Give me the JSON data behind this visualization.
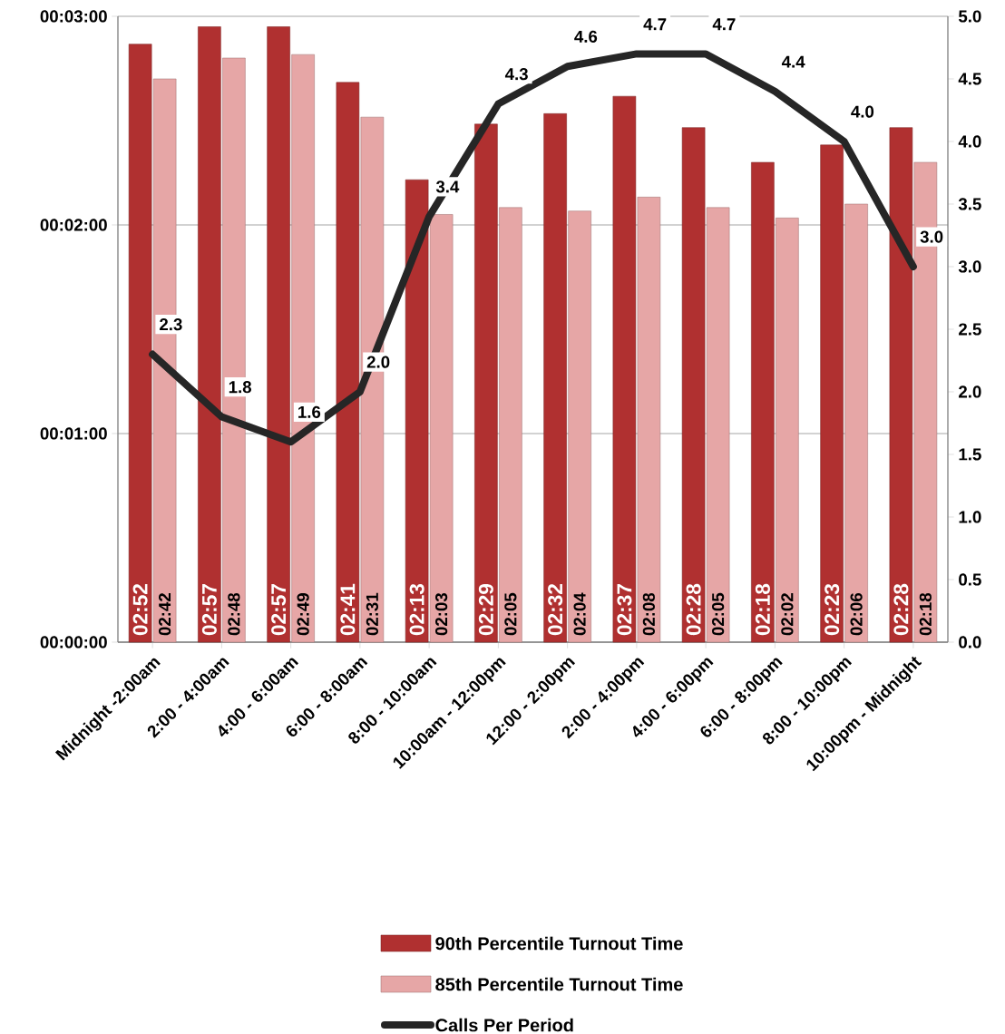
{
  "chart_data": {
    "type": "bar",
    "categories": [
      "Midnight -2:00am",
      "2:00 - 4:00am",
      "4:00 - 6:00am",
      "6:00 - 8:00am",
      "8:00 - 10:00am",
      "10:00am - 12:00pm",
      "12:00 - 2:00pm",
      "2:00 - 4:00pm",
      "4:00 - 6:00pm",
      "6:00 - 8:00pm",
      "8:00 - 10:00pm",
      "10:00pm - Midnight"
    ],
    "ylim": [
      0,
      180
    ],
    "yticks": [
      {
        "value": 0,
        "label": "00:00:00"
      },
      {
        "value": 60,
        "label": "00:01:00"
      },
      {
        "value": 120,
        "label": "00:02:00"
      },
      {
        "value": 180,
        "label": "00:03:00"
      }
    ],
    "y2lim": [
      0,
      5
    ],
    "y2ticks": [
      {
        "value": 0,
        "label": "0.0"
      },
      {
        "value": 0.5,
        "label": "0.5"
      },
      {
        "value": 1,
        "label": "1.0"
      },
      {
        "value": 1.5,
        "label": "1.5"
      },
      {
        "value": 2,
        "label": "2.0"
      },
      {
        "value": 2.5,
        "label": "2.5"
      },
      {
        "value": 3,
        "label": "3.0"
      },
      {
        "value": 3.5,
        "label": "3.5"
      },
      {
        "value": 4,
        "label": "4.0"
      },
      {
        "value": 4.5,
        "label": "4.5"
      },
      {
        "value": 5,
        "label": "5.0"
      }
    ],
    "grid": "y",
    "legend": "bottom",
    "series": [
      {
        "name": "90th Percentile Turnout Time",
        "color": "#b03030",
        "values": [
          172,
          177,
          177,
          161,
          133,
          149,
          152,
          157,
          148,
          138,
          143,
          148
        ],
        "value_labels": [
          "02:52",
          "02:57",
          "02:57",
          "02:41",
          "02:13",
          "02:29",
          "02:32",
          "02:37",
          "02:28",
          "02:18",
          "02:23",
          "02:28"
        ]
      },
      {
        "name": "85th Percentile Turnout Time",
        "color": "#e6a6a6",
        "values": [
          162,
          168,
          169,
          151,
          123,
          125,
          124,
          128,
          125,
          122,
          126,
          138
        ],
        "value_labels": [
          "02:42",
          "02:48",
          "02:49",
          "02:31",
          "02:03",
          "02:05",
          "02:04",
          "02:08",
          "02:05",
          "02:02",
          "02:06",
          "02:18"
        ]
      },
      {
        "name": "Calls Per Period",
        "type": "line",
        "axis": "y2",
        "color": "#262626",
        "values": [
          2.3,
          1.8,
          1.6,
          2.0,
          3.4,
          4.3,
          4.6,
          4.7,
          4.7,
          4.4,
          4.0,
          3.0
        ],
        "value_labels": [
          "2.3",
          "1.8",
          "1.6",
          "2.0",
          "3.4",
          "4.3",
          "4.6",
          "4.7",
          "4.7",
          "4.4",
          "4.0",
          "3.0"
        ]
      }
    ]
  }
}
